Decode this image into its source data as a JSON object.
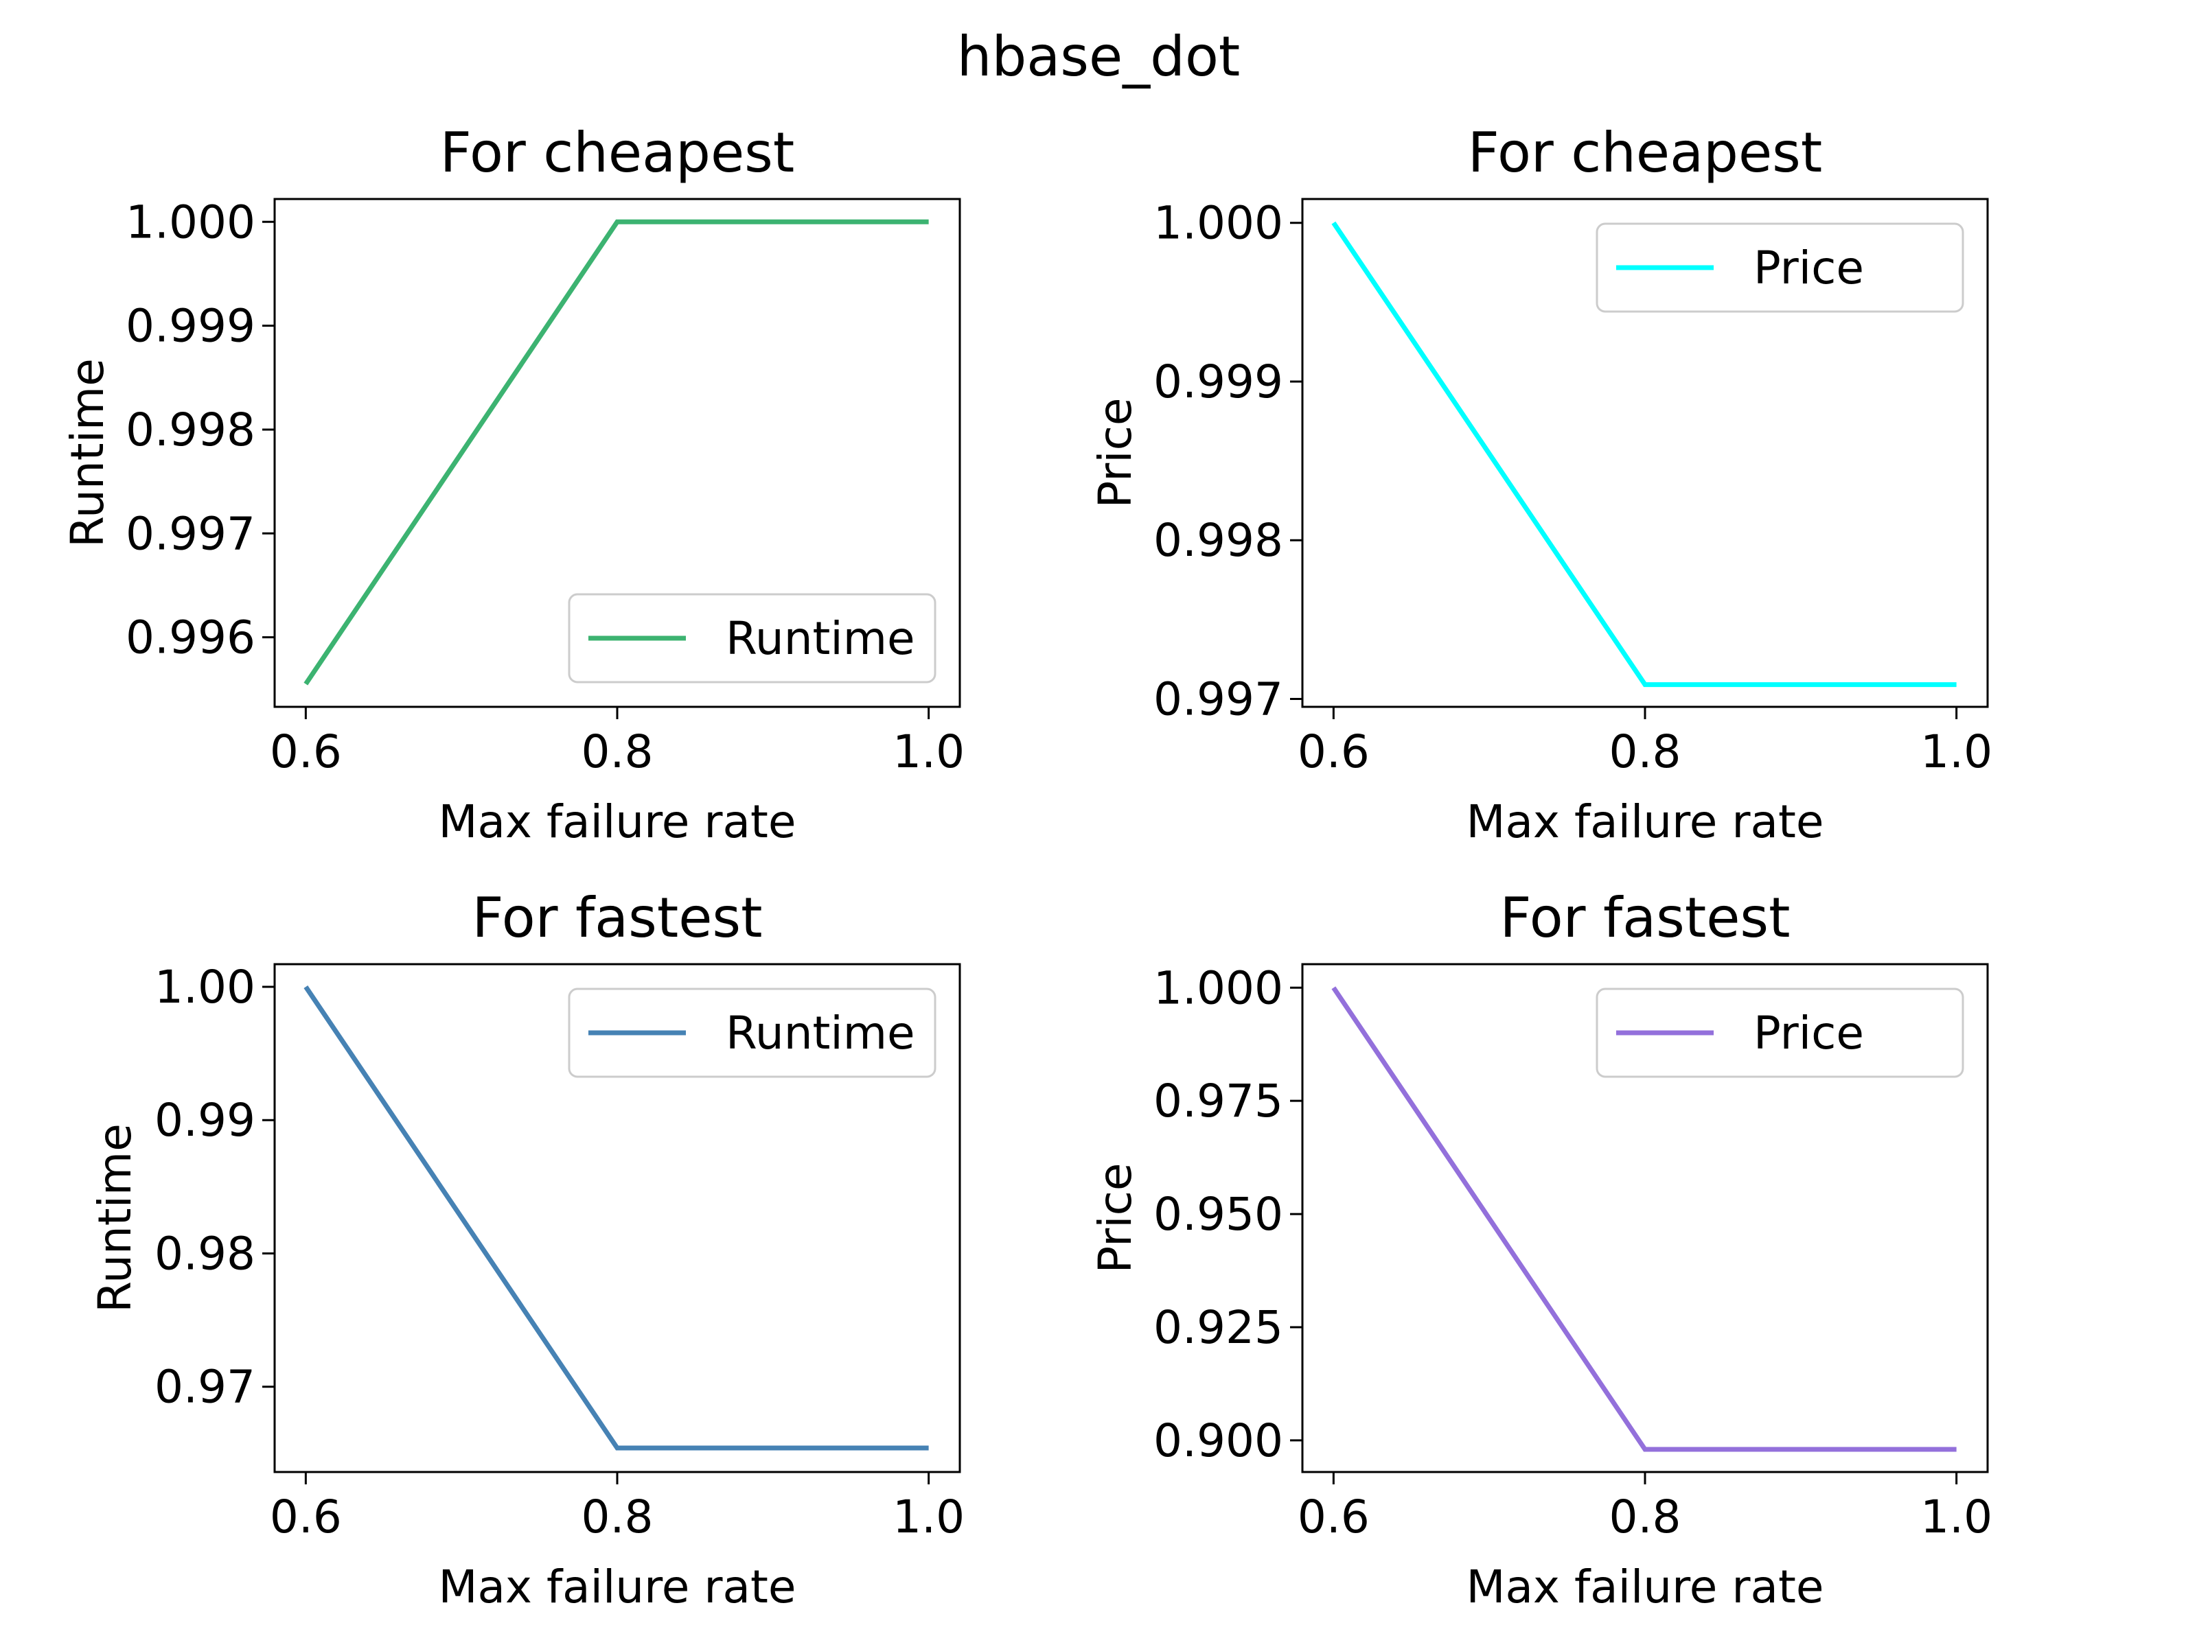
{
  "figure": {
    "suptitle": "hbase_dot"
  },
  "chart_data": [
    {
      "type": "line",
      "title": "For cheapest",
      "xlabel": "Max failure rate",
      "ylabel": "Runtime",
      "x": [
        0.6,
        0.8,
        1.0
      ],
      "xlim": [
        0.58,
        1.02
      ],
      "xticks": [
        "0.6",
        "0.8",
        "1.0"
      ],
      "ylim": [
        0.99533,
        1.00022
      ],
      "yticks": [
        "0.996",
        "0.997",
        "0.998",
        "0.999",
        "1.000"
      ],
      "grid": false,
      "legend_position": "lower-right",
      "series": [
        {
          "name": "Runtime",
          "color": "#3cb371",
          "values": [
            0.99555,
            1.0,
            1.0
          ]
        }
      ]
    },
    {
      "type": "line",
      "title": "For cheapest",
      "xlabel": "Max failure rate",
      "ylabel": "Price",
      "x": [
        0.6,
        0.8,
        1.0
      ],
      "xlim": [
        0.58,
        1.02
      ],
      "xticks": [
        "0.6",
        "0.8",
        "1.0"
      ],
      "ylim": [
        0.99695,
        1.00015
      ],
      "yticks": [
        "0.997",
        "0.998",
        "0.999",
        "1.000"
      ],
      "grid": false,
      "legend_position": "upper-right",
      "series": [
        {
          "name": "Price",
          "color": "#00ffff",
          "values": [
            1.0,
            0.99709,
            0.99709
          ]
        }
      ]
    },
    {
      "type": "line",
      "title": "For fastest",
      "xlabel": "Max failure rate",
      "ylabel": "Runtime",
      "x": [
        0.6,
        0.8,
        1.0
      ],
      "xlim": [
        0.58,
        1.02
      ],
      "xticks": [
        "0.6",
        "0.8",
        "1.0"
      ],
      "ylim": [
        0.9636,
        1.0017
      ],
      "yticks": [
        "0.97",
        "0.98",
        "0.99",
        "1.00"
      ],
      "grid": false,
      "legend_position": "upper-right",
      "series": [
        {
          "name": "Runtime",
          "color": "#4682b4",
          "values": [
            1.0,
            0.9654,
            0.9654
          ]
        }
      ]
    },
    {
      "type": "line",
      "title": "For fastest",
      "xlabel": "Max failure rate",
      "ylabel": "Price",
      "x": [
        0.6,
        0.8,
        1.0
      ],
      "xlim": [
        0.58,
        1.02
      ],
      "xticks": [
        "0.6",
        "0.8",
        "1.0"
      ],
      "ylim": [
        0.893,
        1.0052
      ],
      "yticks": [
        "0.900",
        "0.925",
        "0.950",
        "0.975",
        "1.000"
      ],
      "grid": false,
      "legend_position": "upper-right",
      "series": [
        {
          "name": "Price",
          "color": "#9370db",
          "values": [
            1.0,
            0.898,
            0.898
          ]
        }
      ]
    }
  ]
}
